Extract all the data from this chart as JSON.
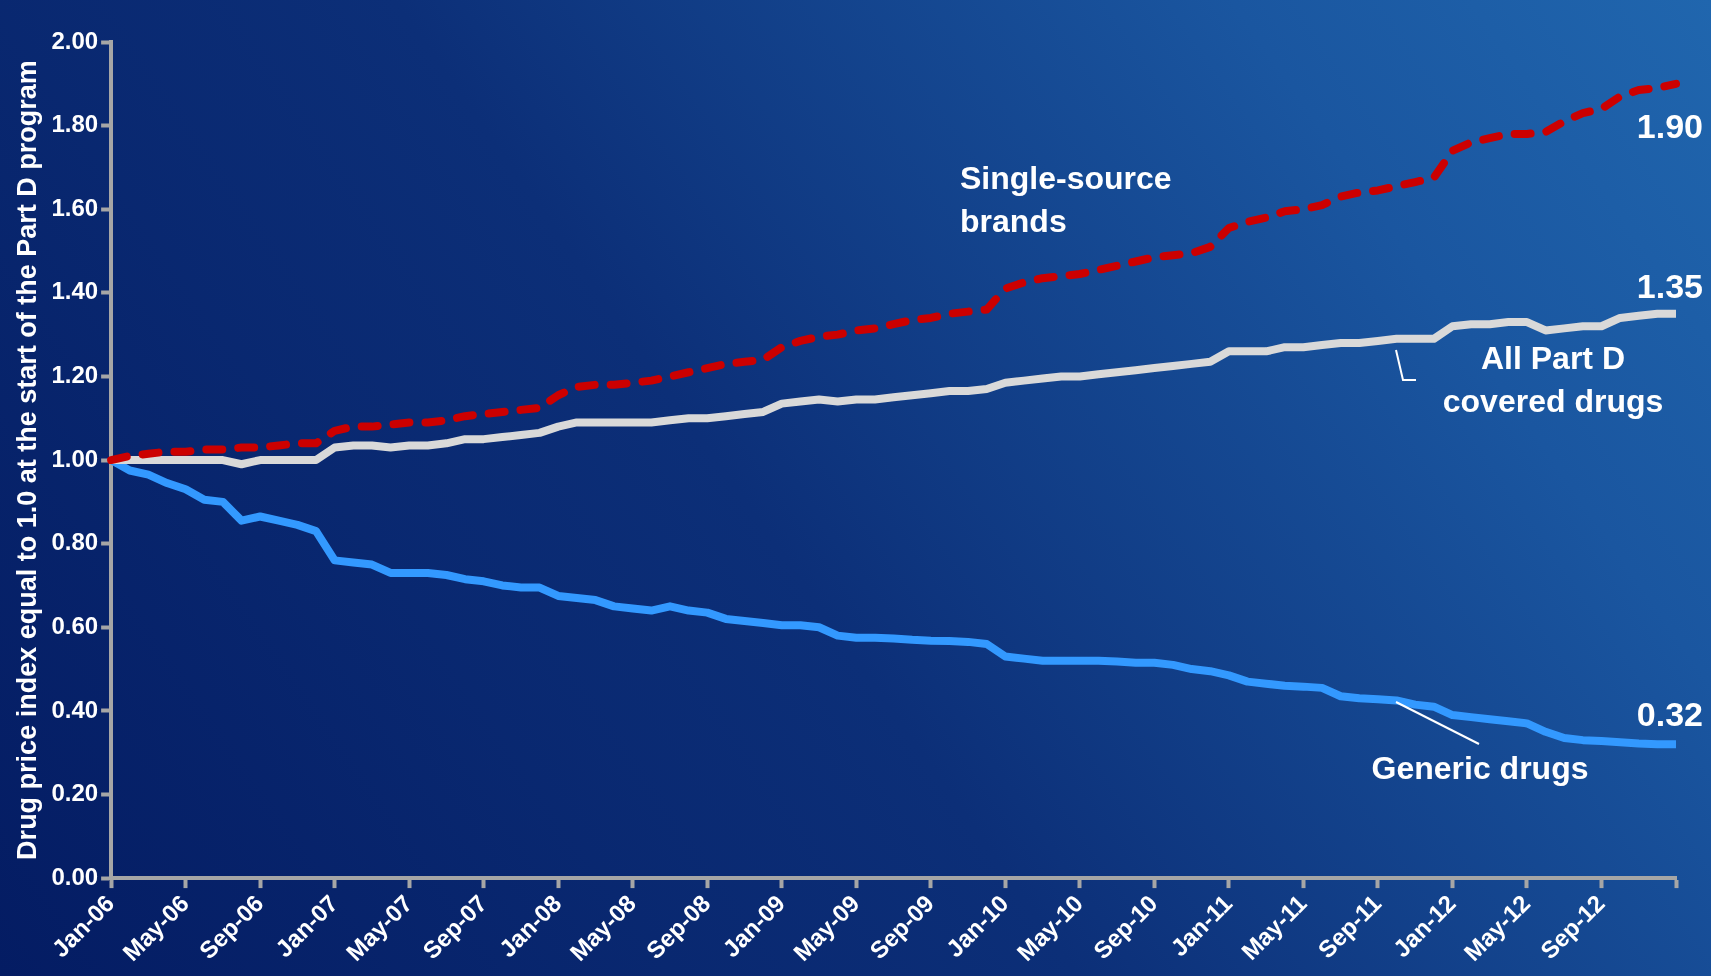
{
  "chart_data": {
    "type": "line",
    "ylabel": "Drug price index equal to 1.0 at the start of the Part D program",
    "categories": [
      "Jan-06",
      null,
      null,
      null,
      "May-06",
      null,
      null,
      null,
      "Sep-06",
      null,
      null,
      null,
      "Jan-07",
      null,
      null,
      null,
      "May-07",
      null,
      null,
      null,
      "Sep-07",
      null,
      null,
      null,
      "Jan-08",
      null,
      null,
      null,
      "May-08",
      null,
      null,
      null,
      "Sep-08",
      null,
      null,
      null,
      "Jan-09",
      null,
      null,
      null,
      "May-09",
      null,
      null,
      null,
      "Sep-09",
      null,
      null,
      null,
      "Jan-10",
      null,
      null,
      null,
      "May-10",
      null,
      null,
      null,
      "Sep-10",
      null,
      null,
      null,
      "Jan-11",
      null,
      null,
      null,
      "May-11",
      null,
      null,
      null,
      "Sep-11",
      null,
      null,
      null,
      "Jan-12",
      null,
      null,
      null,
      "May-12",
      null,
      null,
      null,
      "Sep-12",
      null,
      null,
      null,
      null
    ],
    "ylim": [
      0,
      2
    ],
    "yticks": [
      {
        "value": 0,
        "label": "0.00"
      },
      {
        "value": 0.2,
        "label": "0.20"
      },
      {
        "value": 0.4,
        "label": "0.40"
      },
      {
        "value": 0.6,
        "label": "0.60"
      },
      {
        "value": 0.8,
        "label": "0.80"
      },
      {
        "value": 1,
        "label": "1.00"
      },
      {
        "value": 1.2,
        "label": "1.20"
      },
      {
        "value": 1.4,
        "label": "1.40"
      },
      {
        "value": 1.6,
        "label": "1.60"
      },
      {
        "value": 1.8,
        "label": "1.80"
      },
      {
        "value": 2,
        "label": "2.00"
      }
    ],
    "grid": false,
    "legend": false,
    "marker": "none",
    "series": [
      {
        "name": "Single-source brands",
        "color": "#cc0000",
        "line_style": "dashed",
        "values": [
          1.0,
          1.01,
          1.015,
          1.02,
          1.02,
          1.025,
          1.025,
          1.03,
          1.03,
          1.035,
          1.04,
          1.04,
          1.07,
          1.08,
          1.08,
          1.085,
          1.09,
          1.09,
          1.095,
          1.105,
          1.11,
          1.115,
          1.12,
          1.125,
          1.155,
          1.175,
          1.18,
          1.18,
          1.185,
          1.19,
          1.2,
          1.21,
          1.22,
          1.23,
          1.235,
          1.24,
          1.27,
          1.285,
          1.295,
          1.3,
          1.31,
          1.315,
          1.325,
          1.335,
          1.34,
          1.35,
          1.355,
          1.36,
          1.41,
          1.425,
          1.435,
          1.44,
          1.445,
          1.455,
          1.465,
          1.475,
          1.485,
          1.49,
          1.495,
          1.51,
          1.555,
          1.57,
          1.58,
          1.595,
          1.6,
          1.61,
          1.63,
          1.64,
          1.645,
          1.655,
          1.665,
          1.675,
          1.74,
          1.76,
          1.77,
          1.78,
          1.78,
          1.785,
          1.81,
          1.83,
          1.84,
          1.87,
          1.885,
          1.89,
          1.9
        ],
        "value_labels": [
          null,
          null,
          null,
          null,
          null,
          null,
          null,
          null,
          null,
          null,
          null,
          null,
          null,
          null,
          null,
          null,
          null,
          null,
          null,
          null,
          null,
          null,
          null,
          null,
          null,
          null,
          null,
          null,
          null,
          null,
          null,
          null,
          null,
          null,
          null,
          null,
          null,
          null,
          null,
          null,
          null,
          null,
          null,
          null,
          null,
          null,
          null,
          null,
          null,
          null,
          null,
          null,
          null,
          null,
          null,
          null,
          null,
          null,
          null,
          null,
          null,
          null,
          null,
          null,
          null,
          null,
          null,
          null,
          null,
          null,
          null,
          null,
          null,
          null,
          null,
          null,
          null,
          null,
          null,
          null,
          null,
          null,
          null,
          null,
          "1.90"
        ]
      },
      {
        "name": "All Part D covered drugs",
        "color": "#d9d9d9",
        "line_style": "solid",
        "values": [
          1.0,
          1.0,
          1.0,
          1.0,
          1.0,
          1.0,
          1.0,
          0.99,
          1.0,
          1.0,
          1.0,
          1.0,
          1.03,
          1.035,
          1.035,
          1.03,
          1.035,
          1.035,
          1.04,
          1.05,
          1.05,
          1.055,
          1.06,
          1.065,
          1.08,
          1.09,
          1.09,
          1.09,
          1.09,
          1.09,
          1.095,
          1.1,
          1.1,
          1.105,
          1.11,
          1.115,
          1.135,
          1.14,
          1.145,
          1.14,
          1.145,
          1.145,
          1.15,
          1.155,
          1.16,
          1.165,
          1.165,
          1.17,
          1.185,
          1.19,
          1.195,
          1.2,
          1.2,
          1.205,
          1.21,
          1.215,
          1.22,
          1.225,
          1.23,
          1.235,
          1.26,
          1.26,
          1.26,
          1.27,
          1.27,
          1.275,
          1.28,
          1.28,
          1.285,
          1.29,
          1.29,
          1.29,
          1.32,
          1.325,
          1.325,
          1.33,
          1.33,
          1.31,
          1.315,
          1.32,
          1.32,
          1.34,
          1.345,
          1.35,
          1.35
        ],
        "value_labels": [
          null,
          null,
          null,
          null,
          null,
          null,
          null,
          null,
          null,
          null,
          null,
          null,
          null,
          null,
          null,
          null,
          null,
          null,
          null,
          null,
          null,
          null,
          null,
          null,
          null,
          null,
          null,
          null,
          null,
          null,
          null,
          null,
          null,
          null,
          null,
          null,
          null,
          null,
          null,
          null,
          null,
          null,
          null,
          null,
          null,
          null,
          null,
          null,
          null,
          null,
          null,
          null,
          null,
          null,
          null,
          null,
          null,
          null,
          null,
          null,
          null,
          null,
          null,
          null,
          null,
          null,
          null,
          null,
          null,
          null,
          null,
          null,
          null,
          null,
          null,
          null,
          null,
          null,
          null,
          null,
          null,
          null,
          null,
          null,
          "1.35"
        ]
      },
      {
        "name": "Generic drugs",
        "color": "#3399ff",
        "line_style": "solid",
        "values": [
          1.0,
          0.975,
          0.965,
          0.945,
          0.93,
          0.905,
          0.9,
          0.855,
          0.865,
          0.855,
          0.845,
          0.83,
          0.76,
          0.755,
          0.75,
          0.73,
          0.73,
          0.73,
          0.725,
          0.715,
          0.71,
          0.7,
          0.695,
          0.695,
          0.675,
          0.67,
          0.665,
          0.65,
          0.645,
          0.64,
          0.65,
          0.64,
          0.635,
          0.62,
          0.615,
          0.61,
          0.605,
          0.605,
          0.6,
          0.58,
          0.575,
          0.575,
          0.573,
          0.57,
          0.568,
          0.567,
          0.565,
          0.56,
          0.53,
          0.525,
          0.52,
          0.52,
          0.52,
          0.52,
          0.518,
          0.515,
          0.515,
          0.51,
          0.5,
          0.495,
          0.485,
          0.47,
          0.465,
          0.46,
          0.458,
          0.455,
          0.435,
          0.43,
          0.428,
          0.425,
          0.415,
          0.41,
          0.39,
          0.385,
          0.38,
          0.375,
          0.37,
          0.35,
          0.335,
          0.33,
          0.328,
          0.325,
          0.322,
          0.32,
          0.32
        ],
        "value_labels": [
          null,
          null,
          null,
          null,
          null,
          null,
          null,
          null,
          null,
          null,
          null,
          null,
          null,
          null,
          null,
          null,
          null,
          null,
          null,
          null,
          null,
          null,
          null,
          null,
          null,
          null,
          null,
          null,
          null,
          null,
          null,
          null,
          null,
          null,
          null,
          null,
          null,
          null,
          null,
          null,
          null,
          null,
          null,
          null,
          null,
          null,
          null,
          null,
          null,
          null,
          null,
          null,
          null,
          null,
          null,
          null,
          null,
          null,
          null,
          null,
          null,
          null,
          null,
          null,
          null,
          null,
          null,
          null,
          null,
          null,
          null,
          null,
          null,
          null,
          null,
          null,
          null,
          null,
          null,
          null,
          null,
          null,
          null,
          null,
          "0.32"
        ]
      }
    ]
  }
}
